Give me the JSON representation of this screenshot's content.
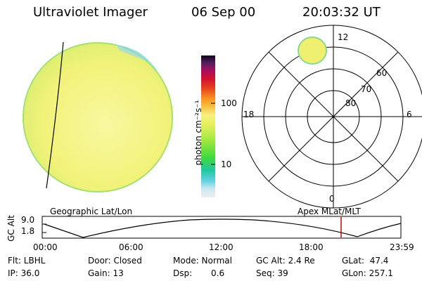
{
  "header": {
    "title": "Ultraviolet Imager",
    "date": "06 Sep 00",
    "time": "20:03:32 UT"
  },
  "colorbar": {
    "label": "photon cm⁻²s⁻¹",
    "ticks": [
      "100",
      "10"
    ]
  },
  "polar": {
    "mlt_labels": {
      "top": "12",
      "left": "18",
      "right": "6",
      "bottom": "0"
    },
    "lat_labels": [
      "60",
      "70",
      "80"
    ]
  },
  "panel_labels": {
    "geographic": "Geographic Lat/Lon",
    "apex": "Apex MLat/MLT"
  },
  "altitude_plot": {
    "ylabel": "GC Alt",
    "yticks": [
      "9.0",
      "1.8"
    ],
    "xticks": [
      "00:00",
      "06:00",
      "12:00",
      "18:00",
      "23:59"
    ]
  },
  "status": {
    "flt": "Flt: LBHL",
    "ip": "IP: 36.0",
    "door": "Door: Closed",
    "gain": "Gain: 13",
    "mode": "Mode: Normal",
    "dsp": "Dsp:",
    "dsp_value": "0.6",
    "gc_alt": "GC Alt: 2.4 Re",
    "seq": "Seq: 39",
    "glat": "GLat:  47.4",
    "glon": "GLon: 257.1"
  },
  "colors": {
    "disk_fill": "#f4f472",
    "disk_edge": "#a8e070",
    "aurora": "#f0f070",
    "marker": "#cc0000"
  }
}
